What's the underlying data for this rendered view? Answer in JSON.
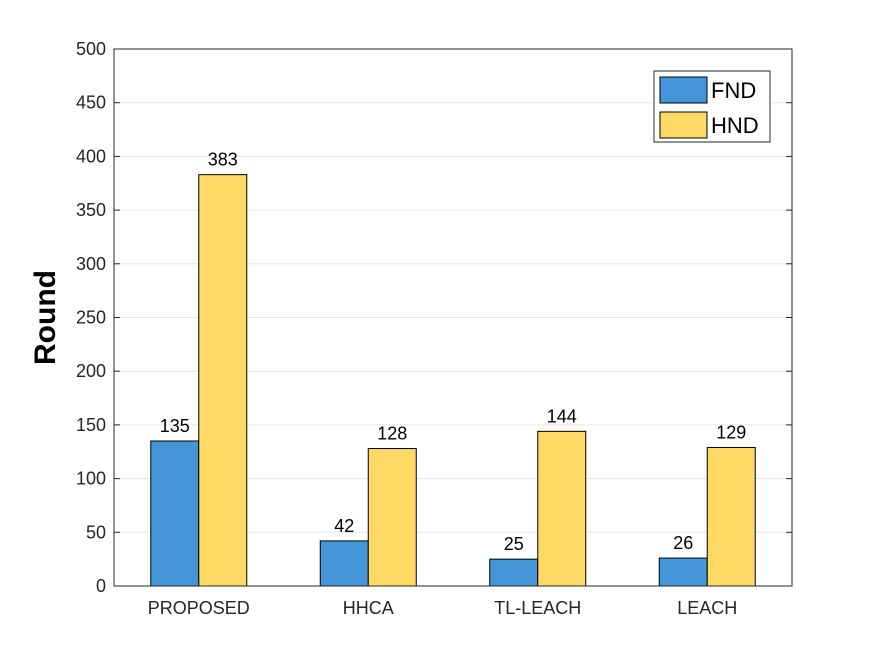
{
  "chart_data": {
    "type": "bar",
    "title": "",
    "xlabel": "",
    "ylabel": "Round",
    "ylim": [
      0,
      500
    ],
    "yticks": [
      0,
      50,
      100,
      150,
      200,
      250,
      300,
      350,
      400,
      450,
      500
    ],
    "categories": [
      "PROPOSED",
      "HHCA",
      "TL-LEACH",
      "LEACH"
    ],
    "series": [
      {
        "name": "FND",
        "values": [
          135,
          42,
          25,
          26
        ],
        "color": "#4596d9"
      },
      {
        "name": "HND",
        "values": [
          383,
          128,
          144,
          129
        ],
        "color": "#ffd966"
      }
    ],
    "grid": true,
    "legend_position": "top-right",
    "data_labels": true
  }
}
